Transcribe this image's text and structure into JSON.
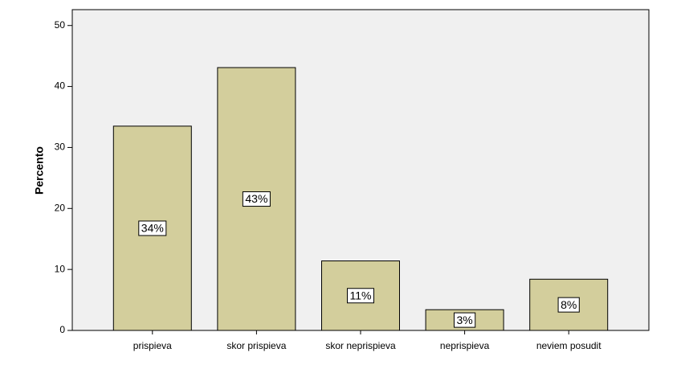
{
  "chart_data": {
    "type": "bar",
    "y_label": "Percento",
    "categories": [
      "prispieva",
      "skor prispieva",
      "skor neprispieva",
      "neprispieva",
      "neviem posudit"
    ],
    "values": [
      33.5,
      43.1,
      11.4,
      3.4,
      8.4
    ],
    "value_labels": [
      "34%",
      "43%",
      "11%",
      "3%",
      "8%"
    ],
    "color": "#d3ce9c",
    "ylim": [
      0,
      52.6
    ],
    "yticks": [
      0,
      10,
      20,
      30,
      40,
      50
    ],
    "grid": false
  }
}
